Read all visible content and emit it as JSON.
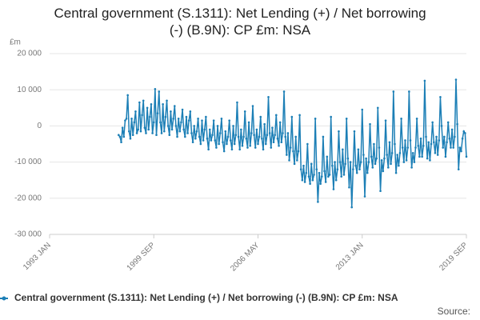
{
  "chart_data": {
    "type": "line",
    "title": "Central government (S.1311): Net Lending (+) / Net borrowing (-) (B.9N): CP £m: NSA",
    "y_label": "£m",
    "source": "Source:",
    "categories": [
      "1993 JAN",
      null,
      null,
      null,
      null,
      null,
      null,
      null,
      null,
      null,
      null,
      null,
      null,
      null,
      null,
      null,
      null,
      null,
      null,
      null,
      null,
      null,
      null,
      null,
      null,
      null,
      null,
      null,
      null,
      null,
      null,
      null,
      null,
      null,
      null,
      null,
      null,
      null,
      null,
      null,
      null,
      null,
      null,
      null,
      null,
      null,
      null,
      null,
      null,
      null,
      null,
      null,
      null,
      null,
      null,
      null,
      null,
      null,
      null,
      null,
      null,
      null,
      null,
      null,
      null,
      null,
      null,
      null,
      null,
      null,
      null,
      null,
      null,
      null,
      null,
      null,
      null,
      null,
      null,
      null,
      "1999 SEP",
      null,
      null,
      null,
      null,
      null,
      null,
      null,
      null,
      null,
      null,
      null,
      null,
      null,
      null,
      null,
      null,
      null,
      null,
      null,
      null,
      null,
      null,
      null,
      null,
      null,
      null,
      null,
      null,
      null,
      null,
      null,
      null,
      null,
      null,
      null,
      null,
      null,
      null,
      null,
      null,
      null,
      null,
      null,
      null,
      null,
      null,
      null,
      null,
      null,
      null,
      null,
      null,
      null,
      null,
      null,
      null,
      null,
      null,
      null,
      null,
      null,
      null,
      null,
      null,
      null,
      null,
      null,
      null,
      null,
      null,
      null,
      null,
      null,
      null,
      null,
      null,
      null,
      null,
      null,
      "2006 MAY",
      null,
      null,
      null,
      null,
      null,
      null,
      null,
      null,
      null,
      null,
      null,
      null,
      null,
      null,
      null,
      null,
      null,
      null,
      null,
      null,
      null,
      null,
      null,
      null,
      null,
      null,
      null,
      null,
      null,
      null,
      null,
      null,
      null,
      null,
      null,
      null,
      null,
      null,
      null,
      null,
      null,
      null,
      null,
      null,
      null,
      null,
      null,
      null,
      null,
      null,
      null,
      null,
      null,
      null,
      null,
      null,
      null,
      null,
      null,
      null,
      null,
      null,
      null,
      null,
      null,
      null,
      null,
      null,
      null,
      null,
      null,
      null,
      null,
      null,
      null,
      null,
      null,
      null,
      null,
      "2013 JAN",
      null,
      null,
      null,
      null,
      null,
      null,
      null,
      null,
      null,
      null,
      null,
      null,
      null,
      null,
      null,
      null,
      null,
      null,
      null,
      null,
      null,
      null,
      null,
      null,
      null,
      null,
      null,
      null,
      null,
      null,
      null,
      null,
      null,
      null,
      null,
      null,
      null,
      null,
      null,
      null,
      null,
      null,
      null,
      null,
      null,
      null,
      null,
      null,
      null,
      null,
      null,
      null,
      null,
      null,
      null,
      null,
      null,
      null,
      null,
      null,
      null,
      null,
      null,
      null,
      null,
      null,
      null,
      null,
      null,
      null,
      null,
      null,
      null,
      null,
      null,
      null,
      null,
      null,
      null,
      "2019 SEP"
    ],
    "series": [
      {
        "name": "Central government (S.1311): Net Lending (+) / Net borrowing (-) (B.9N): CP £m: NSA",
        "color": "#1c7fb6",
        "values": [
          null,
          null,
          null,
          null,
          null,
          null,
          null,
          null,
          null,
          null,
          null,
          null,
          null,
          null,
          null,
          null,
          null,
          null,
          null,
          null,
          null,
          null,
          null,
          null,
          null,
          null,
          null,
          null,
          null,
          null,
          null,
          null,
          null,
          null,
          null,
          null,
          null,
          null,
          null,
          null,
          null,
          null,
          null,
          null,
          null,
          null,
          null,
          null,
          null,
          null,
          null,
          null,
          null,
          -2500,
          -3000,
          -4500,
          -500,
          -3000,
          1500,
          2000,
          8500,
          -1500,
          -3500,
          2000,
          -2500,
          1000,
          4000,
          -2000,
          -1000,
          6500,
          -1500,
          3000,
          7000,
          -500,
          -2000,
          5000,
          -1000,
          2500,
          6000,
          -2000,
          1000,
          10200,
          -2500,
          3500,
          9500,
          1000,
          -2000,
          6000,
          -1500,
          2500,
          7000,
          0,
          -2500,
          4000,
          -1000,
          2000,
          5500,
          0,
          -3000,
          2000,
          -1500,
          1000,
          4500,
          -1000,
          -3000,
          2500,
          -2000,
          1500,
          4000,
          -2000,
          -4500,
          0,
          -3500,
          -1500,
          2000,
          -3000,
          -5000,
          1500,
          -4000,
          -1000,
          2500,
          -3500,
          -6500,
          -1000,
          -4000,
          -2500,
          1500,
          -4000,
          -6000,
          0,
          -5000,
          -2000,
          2000,
          -4500,
          -7000,
          -1500,
          -5000,
          -3000,
          1500,
          -4000,
          -6500,
          0,
          -5000,
          -2500,
          6500,
          -3000,
          -6500,
          -1000,
          -5500,
          -3000,
          4000,
          -3500,
          -6000,
          1000,
          -5500,
          -2000,
          5500,
          -2500,
          -6000,
          -1000,
          -5000,
          -3000,
          2500,
          -3500,
          -6500,
          500,
          -5000,
          -2500,
          8000,
          -2000,
          -6000,
          -500,
          -4500,
          -2500,
          3000,
          -3500,
          -5500,
          1000,
          -4500,
          -2000,
          9500,
          -3000,
          -8000,
          -2000,
          -9500,
          -6000,
          2500,
          -7000,
          -10500,
          -3000,
          -9500,
          -7000,
          3000,
          -12000,
          -15000,
          -11000,
          -15500,
          -13000,
          -5000,
          -14000,
          -16000,
          -10500,
          -15000,
          -13500,
          2000,
          -12000,
          -21000,
          -13000,
          -16000,
          -14000,
          -3000,
          -12500,
          -15500,
          -8500,
          -14000,
          -13500,
          2500,
          -11000,
          -17500,
          -10000,
          -15000,
          -12000,
          -1500,
          -10000,
          -14000,
          -6500,
          -13500,
          -10500,
          2000,
          -9000,
          -17000,
          -10000,
          -22500,
          -12000,
          -1500,
          -11000,
          -13000,
          -6500,
          -12000,
          -10000,
          4500,
          -8000,
          -19500,
          -9000,
          -13000,
          -10000,
          500,
          -8500,
          -11500,
          -5000,
          -10500,
          -9000,
          5000,
          -6000,
          -18000,
          -9500,
          -12500,
          -9000,
          1500,
          -8000,
          -11500,
          -4500,
          -10500,
          -7500,
          9500,
          -5000,
          -13000,
          -8000,
          -11000,
          -7500,
          2000,
          -6000,
          -10000,
          -4000,
          -9500,
          -6000,
          9500,
          -4000,
          -11500,
          -7500,
          -10000,
          -6000,
          2000,
          -5500,
          -8500,
          -3500,
          -8500,
          -5500,
          12500,
          -3000,
          -9000,
          -4500,
          -9500,
          -5000,
          1000,
          -4500,
          -7500,
          -3000,
          -8000,
          -4000,
          8000,
          0,
          -6000,
          -3000,
          -8500,
          -4500,
          1000,
          -3500,
          -6000,
          -1000,
          -6000,
          -3000,
          12800,
          500,
          -12000,
          -6000,
          -7000,
          -3500,
          -1500,
          -2000,
          -8500
        ]
      }
    ],
    "ylim": [
      -30000,
      20000
    ],
    "yticks": [
      {
        "value": -30000,
        "label": "-30 000"
      },
      {
        "value": -20000,
        "label": "-20 000"
      },
      {
        "value": -10000,
        "label": "-10 000"
      },
      0,
      {
        "value": 10000,
        "label": "10 000"
      },
      {
        "value": 20000,
        "label": "20 000"
      }
    ],
    "grid": true
  }
}
